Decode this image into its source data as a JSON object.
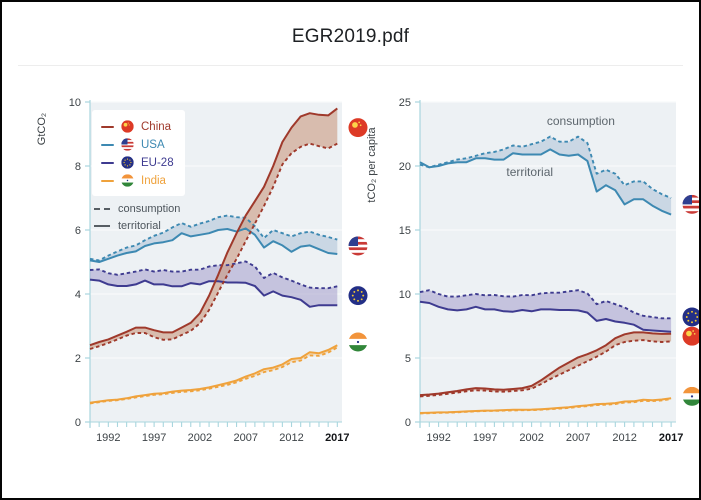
{
  "window": {
    "title": "EGR2019.pdf"
  },
  "colors": {
    "plot_bg": "#edf1f4",
    "gridline": "#f8fafb",
    "axis": "#a9d6de",
    "tick_label": "#3d4347",
    "tick_label_last": "#141619",
    "annotation": "#5d666d"
  },
  "legend": {
    "countries": [
      {
        "name": "China",
        "color": "#9f392b",
        "band": "#c99a7f",
        "flag": "china"
      },
      {
        "name": "USA",
        "color": "#3d89b2",
        "band": "#b2c6d9",
        "flag": "usa"
      },
      {
        "name": "EU-28",
        "color": "#3e3b90",
        "band": "#aaa5cf",
        "flag": "eu"
      },
      {
        "name": "India",
        "color": "#efa23c",
        "band": "#f0cf9e",
        "flag": "india"
      }
    ],
    "styles": [
      {
        "label": "consumption",
        "dash": true
      },
      {
        "label": "territorial",
        "dash": false
      }
    ]
  },
  "chart_data": [
    {
      "type": "line",
      "ylabel": "GtCO₂",
      "ylim": [
        0,
        10
      ],
      "yticks": [
        0,
        2,
        4,
        6,
        8,
        10
      ],
      "years": [
        1990,
        1991,
        1992,
        1993,
        1994,
        1995,
        1996,
        1997,
        1998,
        1999,
        2000,
        2001,
        2002,
        2003,
        2004,
        2005,
        2006,
        2007,
        2008,
        2009,
        2010,
        2011,
        2012,
        2013,
        2014,
        2015,
        2016,
        2017
      ],
      "xticks": [
        1992,
        1997,
        2002,
        2007,
        2012,
        2017
      ],
      "series": [
        {
          "country": "USA",
          "style": "territorial",
          "values": [
            5.05,
            5.0,
            5.1,
            5.2,
            5.28,
            5.33,
            5.5,
            5.58,
            5.62,
            5.68,
            5.9,
            5.8,
            5.85,
            5.9,
            6.0,
            6.03,
            5.95,
            6.05,
            5.85,
            5.45,
            5.65,
            5.52,
            5.32,
            5.48,
            5.52,
            5.4,
            5.28,
            5.25
          ]
        },
        {
          "country": "USA",
          "style": "consumption",
          "values": [
            5.1,
            5.05,
            5.2,
            5.33,
            5.45,
            5.52,
            5.68,
            5.82,
            5.92,
            6.08,
            6.22,
            6.1,
            6.2,
            6.28,
            6.4,
            6.45,
            6.4,
            6.38,
            6.12,
            5.75,
            6.0,
            5.9,
            5.8,
            5.9,
            5.95,
            5.85,
            5.78,
            5.7
          ]
        },
        {
          "country": "EU-28",
          "style": "territorial",
          "values": [
            4.45,
            4.42,
            4.3,
            4.25,
            4.25,
            4.3,
            4.42,
            4.3,
            4.3,
            4.24,
            4.24,
            4.34,
            4.3,
            4.4,
            4.4,
            4.36,
            4.36,
            4.35,
            4.25,
            3.95,
            4.08,
            3.95,
            3.9,
            3.82,
            3.6,
            3.65,
            3.65,
            3.65
          ]
        },
        {
          "country": "EU-28",
          "style": "consumption",
          "values": [
            4.75,
            4.77,
            4.65,
            4.6,
            4.65,
            4.7,
            4.77,
            4.7,
            4.75,
            4.7,
            4.7,
            4.76,
            4.76,
            4.86,
            4.9,
            4.9,
            4.96,
            5.02,
            4.86,
            4.5,
            4.66,
            4.52,
            4.42,
            4.3,
            4.2,
            4.18,
            4.18,
            4.24
          ]
        },
        {
          "country": "India",
          "style": "territorial",
          "values": [
            0.6,
            0.64,
            0.68,
            0.7,
            0.74,
            0.8,
            0.84,
            0.88,
            0.9,
            0.95,
            0.98,
            1.0,
            1.03,
            1.08,
            1.15,
            1.22,
            1.3,
            1.42,
            1.52,
            1.65,
            1.7,
            1.8,
            1.97,
            2.0,
            2.18,
            2.15,
            2.25,
            2.4
          ]
        },
        {
          "country": "India",
          "style": "consumption",
          "values": [
            0.58,
            0.62,
            0.66,
            0.68,
            0.72,
            0.77,
            0.81,
            0.85,
            0.87,
            0.91,
            0.94,
            0.96,
            0.99,
            1.04,
            1.1,
            1.16,
            1.24,
            1.35,
            1.44,
            1.56,
            1.62,
            1.72,
            1.87,
            1.92,
            2.08,
            2.07,
            2.17,
            2.33
          ]
        },
        {
          "country": "China",
          "style": "territorial",
          "values": [
            2.4,
            2.5,
            2.58,
            2.7,
            2.82,
            2.95,
            2.95,
            2.87,
            2.8,
            2.8,
            2.95,
            3.1,
            3.4,
            3.95,
            4.6,
            5.3,
            5.9,
            6.45,
            6.9,
            7.35,
            8.0,
            8.75,
            9.2,
            9.55,
            9.65,
            9.6,
            9.58,
            9.8
          ]
        },
        {
          "country": "China",
          "style": "consumption",
          "values": [
            2.28,
            2.37,
            2.47,
            2.58,
            2.7,
            2.78,
            2.78,
            2.65,
            2.57,
            2.58,
            2.72,
            2.85,
            3.08,
            3.5,
            4.05,
            4.6,
            5.1,
            5.65,
            6.2,
            6.75,
            7.35,
            8.05,
            8.4,
            8.6,
            8.7,
            8.62,
            8.55,
            8.7
          ]
        }
      ],
      "end_flags": [
        {
          "country": "China",
          "value": 9.2
        },
        {
          "country": "USA",
          "value": 5.5
        },
        {
          "country": "EU-28",
          "value": 3.95
        },
        {
          "country": "India",
          "value": 2.5
        }
      ],
      "annotations": []
    },
    {
      "type": "line",
      "ylabel": "tCO₂ per capita",
      "ylim": [
        0,
        25
      ],
      "yticks": [
        0,
        5,
        10,
        15,
        20,
        25
      ],
      "years": [
        1990,
        1991,
        1992,
        1993,
        1994,
        1995,
        1996,
        1997,
        1998,
        1999,
        2000,
        2001,
        2002,
        2003,
        2004,
        2005,
        2006,
        2007,
        2008,
        2009,
        2010,
        2011,
        2012,
        2013,
        2014,
        2015,
        2016,
        2017
      ],
      "xticks": [
        1992,
        1997,
        2002,
        2007,
        2012,
        2017
      ],
      "series": [
        {
          "country": "USA",
          "style": "territorial",
          "values": [
            20.3,
            19.9,
            20.0,
            20.2,
            20.3,
            20.3,
            20.6,
            20.6,
            20.5,
            20.5,
            21.0,
            20.9,
            20.9,
            20.9,
            21.3,
            20.9,
            20.8,
            20.9,
            20.4,
            18.0,
            18.5,
            18.1,
            17.0,
            17.4,
            17.4,
            16.9,
            16.5,
            16.2
          ]
        },
        {
          "country": "USA",
          "style": "consumption",
          "values": [
            20.1,
            19.9,
            20.1,
            20.3,
            20.5,
            20.6,
            20.8,
            21.0,
            21.1,
            21.3,
            21.6,
            21.5,
            21.7,
            21.9,
            22.3,
            21.9,
            21.9,
            22.3,
            21.8,
            19.4,
            19.7,
            19.4,
            18.5,
            18.8,
            18.8,
            18.2,
            17.8,
            17.5
          ]
        },
        {
          "country": "EU-28",
          "style": "territorial",
          "values": [
            9.4,
            9.3,
            9.0,
            8.8,
            8.72,
            8.8,
            9.0,
            8.8,
            8.8,
            8.65,
            8.62,
            8.75,
            8.65,
            8.8,
            8.8,
            8.75,
            8.75,
            8.72,
            8.55,
            7.9,
            8.05,
            7.85,
            7.75,
            7.6,
            7.2,
            7.15,
            7.1,
            7.05
          ]
        },
        {
          "country": "EU-28",
          "style": "consumption",
          "values": [
            10.15,
            10.3,
            10.0,
            9.8,
            9.8,
            9.9,
            10.0,
            9.9,
            9.92,
            9.82,
            9.8,
            9.92,
            9.9,
            10.05,
            10.1,
            10.1,
            10.2,
            10.3,
            10.05,
            9.2,
            9.45,
            9.2,
            8.95,
            8.55,
            8.3,
            8.2,
            8.1,
            8.1
          ]
        },
        {
          "country": "India",
          "style": "territorial",
          "values": [
            0.7,
            0.72,
            0.75,
            0.76,
            0.79,
            0.83,
            0.86,
            0.89,
            0.9,
            0.93,
            0.95,
            0.96,
            0.97,
            1.0,
            1.05,
            1.1,
            1.15,
            1.24,
            1.3,
            1.4,
            1.42,
            1.48,
            1.6,
            1.62,
            1.74,
            1.7,
            1.76,
            1.86
          ]
        },
        {
          "country": "India",
          "style": "consumption",
          "values": [
            0.67,
            0.69,
            0.72,
            0.73,
            0.76,
            0.8,
            0.83,
            0.86,
            0.87,
            0.89,
            0.91,
            0.92,
            0.93,
            0.96,
            1.01,
            1.05,
            1.1,
            1.18,
            1.24,
            1.33,
            1.35,
            1.41,
            1.52,
            1.55,
            1.66,
            1.63,
            1.69,
            1.79
          ]
        },
        {
          "country": "China",
          "style": "territorial",
          "values": [
            2.1,
            2.15,
            2.22,
            2.32,
            2.42,
            2.55,
            2.65,
            2.62,
            2.55,
            2.52,
            2.58,
            2.65,
            2.82,
            3.25,
            3.75,
            4.25,
            4.65,
            5.05,
            5.3,
            5.6,
            6.0,
            6.55,
            6.85,
            7.0,
            7.0,
            6.92,
            6.88,
            6.9
          ]
        },
        {
          "country": "China",
          "style": "consumption",
          "values": [
            2.0,
            2.05,
            2.12,
            2.2,
            2.3,
            2.4,
            2.48,
            2.45,
            2.38,
            2.37,
            2.42,
            2.48,
            2.6,
            2.95,
            3.35,
            3.7,
            4.05,
            4.4,
            4.75,
            5.1,
            5.5,
            6.0,
            6.25,
            6.35,
            6.4,
            6.3,
            6.25,
            6.3
          ]
        }
      ],
      "end_flags": [
        {
          "country": "USA",
          "value": 17.0
        },
        {
          "country": "EU-28",
          "value": 8.2
        },
        {
          "country": "China",
          "value": 6.7
        },
        {
          "country": "India",
          "value": 2.0
        }
      ],
      "annotations": [
        {
          "label": "consumption",
          "year": 2007.3,
          "value": 23.2
        },
        {
          "label": "territorial",
          "year": 2001.8,
          "value": 19.2
        }
      ]
    }
  ]
}
